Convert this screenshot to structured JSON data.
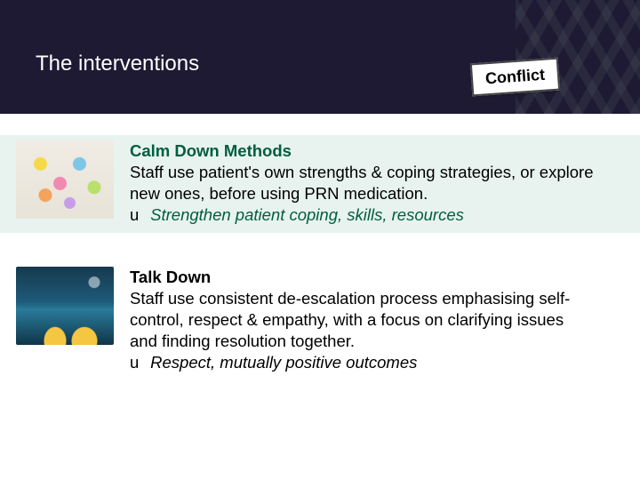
{
  "header": {
    "title": "The interventions",
    "tag_label": "Conflict",
    "band_color": "#1e1a33"
  },
  "blocks": [
    {
      "heading": "Calm Down Methods",
      "body": "Staff use patient's own strengths & coping strategies, or explore new ones, before using PRN medication.",
      "bullet_glyph": "u",
      "bullet_text": "Strengthen patient coping, skills, resources",
      "tint": "#e8f3ef",
      "image_alt": "origami-birds"
    },
    {
      "heading": "Talk Down",
      "body": "Staff use consistent de-escalation process emphasising self-control, respect & empathy, with a focus on clarifying issues and finding resolution together.",
      "bullet_glyph": "u",
      "bullet_text": "Respect, mutually positive outcomes",
      "tint": "#ffffff",
      "image_alt": "paper-boats"
    }
  ],
  "typography": {
    "title_fontsize": 24,
    "body_fontsize": 18.5,
    "accent_color": "#005e3f"
  }
}
